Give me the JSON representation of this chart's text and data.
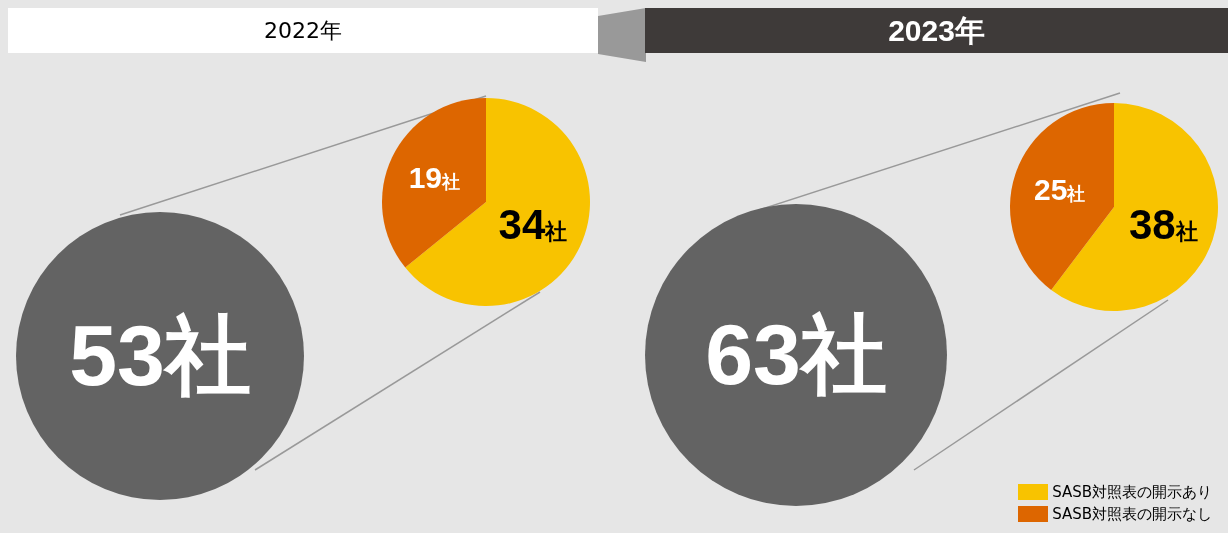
{
  "chart_data": [
    {
      "type": "pie",
      "title": "2022年",
      "categories": [
        null,
        null
      ],
      "values": [
        34,
        19
      ],
      "colors": [
        "#f8c300",
        "#dd6600"
      ],
      "value_labels": [
        "34社",
        "19社"
      ],
      "annotations": [
        "53社"
      ],
      "legend": false
    },
    {
      "type": "pie",
      "title": "2023年",
      "categories": [
        "SASB対照表の開示あり",
        "SASB対照表の開示なし"
      ],
      "values": [
        38,
        25
      ],
      "colors": [
        "#f8c300",
        "#dd6600"
      ],
      "value_labels": [
        "38社",
        "25社"
      ],
      "annotations": [
        "63社"
      ],
      "legend": "bottom right"
    }
  ]
}
